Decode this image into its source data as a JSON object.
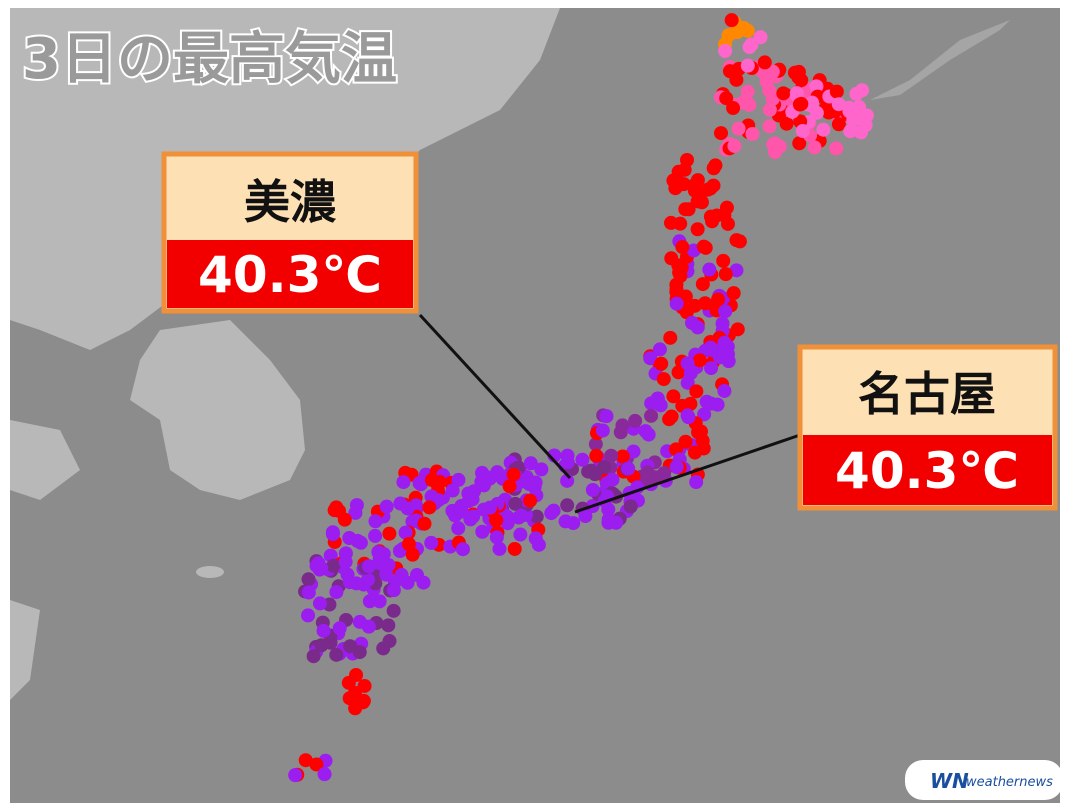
{
  "title": "3日の最高気温",
  "callouts": [
    {
      "place": "美濃",
      "temperature": "40.3℃"
    },
    {
      "place": "名古屋",
      "temperature": "40.3℃"
    }
  ],
  "logo": {
    "mark": "WN",
    "name": "weathernews"
  }
}
